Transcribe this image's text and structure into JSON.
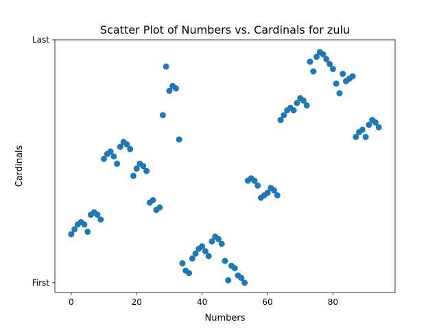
{
  "chart_data": {
    "type": "scatter",
    "title": "Scatter Plot of Numbers vs. Cardinals for zulu",
    "xlabel": "Numbers",
    "ylabel": "Cardinals",
    "xlim": [
      -5,
      99
    ],
    "ylim": [
      -4,
      100
    ],
    "x_ticks": [
      0,
      20,
      40,
      60,
      80
    ],
    "y_ticks": [
      {
        "value": 0,
        "label": "First"
      },
      {
        "value": 100,
        "label": "Last"
      }
    ],
    "color": "#1f77b4",
    "grid": false,
    "legend": "none",
    "points": [
      [
        0,
        20
      ],
      [
        1,
        22
      ],
      [
        2,
        24
      ],
      [
        3,
        25
      ],
      [
        4,
        24
      ],
      [
        5,
        21
      ],
      [
        6,
        28
      ],
      [
        7,
        29
      ],
      [
        8,
        28
      ],
      [
        9,
        26
      ],
      [
        10,
        51
      ],
      [
        11,
        53
      ],
      [
        12,
        54
      ],
      [
        13,
        52
      ],
      [
        14,
        49
      ],
      [
        15,
        56
      ],
      [
        16,
        58
      ],
      [
        17,
        57
      ],
      [
        18,
        55
      ],
      [
        19,
        44
      ],
      [
        20,
        47
      ],
      [
        21,
        49
      ],
      [
        22,
        48
      ],
      [
        23,
        46
      ],
      [
        24,
        33
      ],
      [
        25,
        34
      ],
      [
        26,
        30
      ],
      [
        27,
        31
      ],
      [
        28,
        69
      ],
      [
        29,
        89
      ],
      [
        30,
        79
      ],
      [
        31,
        81
      ],
      [
        32,
        80
      ],
      [
        33,
        59
      ],
      [
        34,
        8
      ],
      [
        35,
        5
      ],
      [
        36,
        4
      ],
      [
        37,
        10
      ],
      [
        38,
        12
      ],
      [
        39,
        14
      ],
      [
        40,
        15
      ],
      [
        41,
        13
      ],
      [
        42,
        11
      ],
      [
        43,
        17
      ],
      [
        44,
        19
      ],
      [
        45,
        18
      ],
      [
        46,
        16
      ],
      [
        47,
        9
      ],
      [
        48,
        1
      ],
      [
        49,
        7
      ],
      [
        50,
        6
      ],
      [
        51,
        3
      ],
      [
        52,
        2
      ],
      [
        53,
        0
      ],
      [
        54,
        42
      ],
      [
        55,
        43
      ],
      [
        56,
        42
      ],
      [
        57,
        40
      ],
      [
        58,
        35
      ],
      [
        59,
        36
      ],
      [
        60,
        37
      ],
      [
        61,
        39
      ],
      [
        62,
        38
      ],
      [
        63,
        36
      ],
      [
        64,
        67
      ],
      [
        65,
        69
      ],
      [
        66,
        71
      ],
      [
        67,
        72
      ],
      [
        68,
        71
      ],
      [
        69,
        74
      ],
      [
        70,
        76
      ],
      [
        71,
        75
      ],
      [
        72,
        73
      ],
      [
        73,
        91
      ],
      [
        74,
        87
      ],
      [
        75,
        93
      ],
      [
        76,
        95
      ],
      [
        77,
        94
      ],
      [
        78,
        92
      ],
      [
        79,
        90
      ],
      [
        80,
        88
      ],
      [
        81,
        82
      ],
      [
        82,
        78
      ],
      [
        83,
        86
      ],
      [
        84,
        83
      ],
      [
        85,
        84
      ],
      [
        86,
        85
      ],
      [
        87,
        60
      ],
      [
        88,
        62
      ],
      [
        89,
        63
      ],
      [
        90,
        60
      ],
      [
        91,
        65
      ],
      [
        92,
        67
      ],
      [
        93,
        66
      ],
      [
        94,
        64
      ]
    ]
  }
}
